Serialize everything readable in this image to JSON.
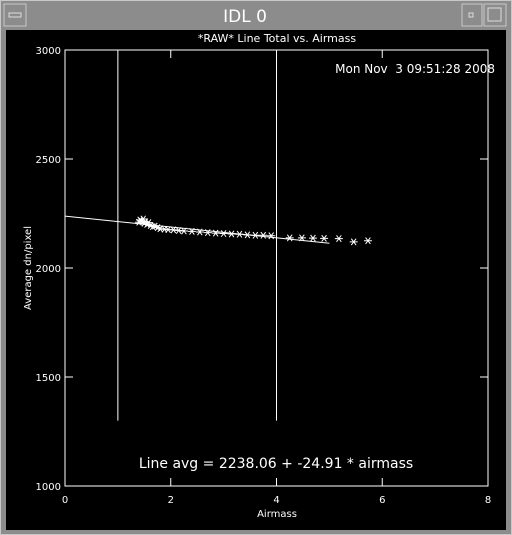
{
  "window": {
    "title": "IDL 0"
  },
  "chart_data": {
    "type": "scatter",
    "title": "*RAW* Line Total vs. Airmass",
    "timestamp": "Mon Nov  3 09:51:28 2008",
    "annotation": "Line avg = 2238.06 + -24.91 * airmass",
    "xlabel": "Airmass",
    "ylabel": "Average dn/pixel",
    "xlim": [
      0,
      8
    ],
    "xticks": [
      0,
      2,
      4,
      6,
      8
    ],
    "ylim": [
      1000,
      3000
    ],
    "yticks": [
      1000,
      1500,
      2000,
      2500,
      3000
    ],
    "color": "#ffffff",
    "x": [
      1.4,
      1.42,
      1.45,
      1.48,
      1.5,
      1.52,
      1.55,
      1.58,
      1.62,
      1.66,
      1.7,
      1.75,
      1.8,
      1.88,
      1.95,
      2.05,
      2.15,
      2.25,
      2.4,
      2.55,
      2.7,
      2.85,
      3.0,
      3.15,
      3.3,
      3.45,
      3.6,
      3.75,
      3.9,
      4.25,
      4.48,
      4.69,
      4.9,
      5.18,
      5.46,
      5.73
    ],
    "values": [
      2210,
      2220,
      2215,
      2225,
      2205,
      2212,
      2200,
      2208,
      2195,
      2190,
      2192,
      2185,
      2180,
      2178,
      2176,
      2175,
      2172,
      2170,
      2168,
      2165,
      2162,
      2160,
      2158,
      2156,
      2155,
      2152,
      2150,
      2150,
      2148,
      2138,
      2138,
      2137,
      2136,
      2135,
      2120,
      2125
    ],
    "fit_line": {
      "x": [
        0,
        5
      ],
      "y": [
        2238.06,
        2113.51
      ]
    },
    "vertical_lines": {
      "x": [
        1,
        4
      ],
      "from": 1300
    }
  }
}
